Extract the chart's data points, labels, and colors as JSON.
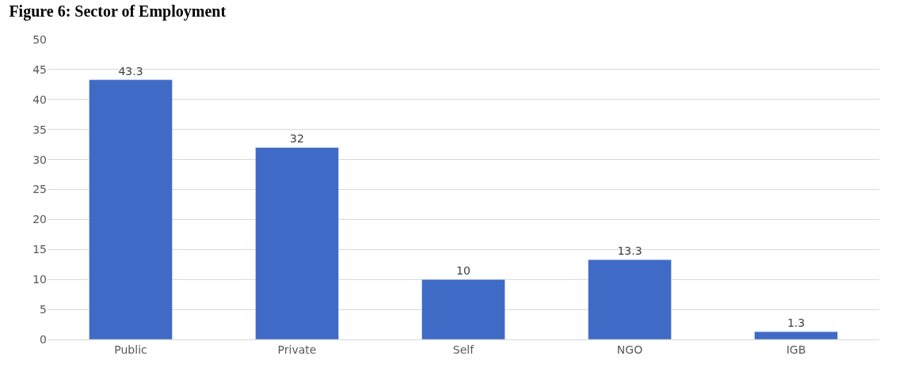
{
  "chart_data": {
    "type": "bar",
    "title": "Figure 6: Sector of Employment",
    "categories": [
      "Public",
      "Private",
      "Self",
      "NGO",
      "IGB"
    ],
    "values": [
      43.3,
      32,
      10,
      13.3,
      1.3
    ],
    "color": "#3f6bc6",
    "ylim": [
      0,
      50
    ],
    "yticks": [
      0,
      5,
      10,
      15,
      20,
      25,
      30,
      35,
      40,
      45,
      50
    ],
    "grid": "y",
    "data_labels": true
  }
}
